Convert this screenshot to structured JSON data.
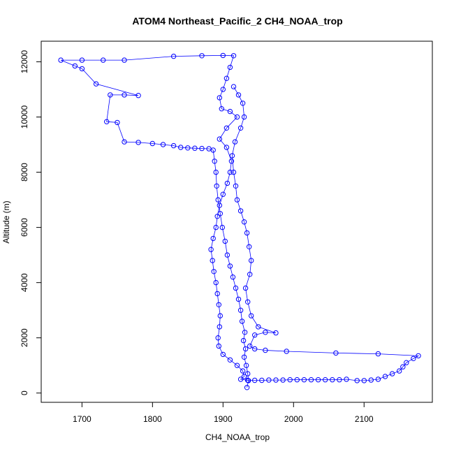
{
  "chart_data": {
    "type": "scatter",
    "title": "ATOM4 Northeast_Pacific_2 CH4_NOAA_trop",
    "xlabel": "CH4_NOAA_trop",
    "ylabel": "Altitude (m)",
    "xlim": [
      1662,
      2177
    ],
    "ylim": [
      170,
      12240
    ],
    "x_ticks": [
      1700,
      1800,
      1900,
      2000,
      2100
    ],
    "y_ticks": [
      0,
      2000,
      4000,
      6000,
      8000,
      10000,
      12000
    ],
    "grid": false,
    "legend": "none",
    "marker": "open-circle",
    "connected_by_line": true,
    "colors": {
      "series": "#0000ff",
      "axes": "#000000",
      "background": "#ffffff"
    },
    "series": [
      {
        "values_xy": [
          [
            1934,
            200
          ],
          [
            1936,
            450
          ],
          [
            1935,
            700
          ],
          [
            1933,
            1000
          ],
          [
            1930,
            1300
          ],
          [
            1932,
            1600
          ],
          [
            1929,
            1900
          ],
          [
            1931,
            2200
          ],
          [
            1927,
            2600
          ],
          [
            1925,
            3000
          ],
          [
            1922,
            3400
          ],
          [
            1918,
            3800
          ],
          [
            1914,
            4200
          ],
          [
            1910,
            4600
          ],
          [
            1906,
            5000
          ],
          [
            1903,
            5500
          ],
          [
            1899,
            6000
          ],
          [
            1896,
            6500
          ],
          [
            1893,
            7000
          ],
          [
            1891,
            7500
          ],
          [
            1890,
            8000
          ],
          [
            1888,
            8400
          ],
          [
            1886,
            8800
          ],
          [
            1880,
            8850
          ],
          [
            1870,
            8860
          ],
          [
            1860,
            8870
          ],
          [
            1850,
            8880
          ],
          [
            1840,
            8900
          ],
          [
            1830,
            8960
          ],
          [
            1815,
            9000
          ],
          [
            1800,
            9040
          ],
          [
            1780,
            9080
          ],
          [
            1760,
            9100
          ],
          [
            1750,
            9800
          ],
          [
            1735,
            9830
          ],
          [
            1740,
            10800
          ],
          [
            1760,
            10800
          ],
          [
            1780,
            10780
          ],
          [
            1720,
            11200
          ],
          [
            1700,
            11750
          ],
          [
            1690,
            11850
          ],
          [
            1670,
            12060
          ],
          [
            1700,
            12060
          ],
          [
            1730,
            12060
          ],
          [
            1760,
            12060
          ],
          [
            1830,
            12200
          ],
          [
            1870,
            12220
          ],
          [
            1900,
            12230
          ],
          [
            1915,
            12220
          ],
          [
            1910,
            11800
          ],
          [
            1905,
            11400
          ],
          [
            1900,
            11000
          ],
          [
            1895,
            10700
          ],
          [
            1898,
            10300
          ],
          [
            1910,
            10200
          ],
          [
            1920,
            10000
          ],
          [
            1905,
            9600
          ],
          [
            1895,
            9200
          ],
          [
            1905,
            8900
          ],
          [
            1912,
            8400
          ],
          [
            1910,
            8000
          ],
          [
            1906,
            7600
          ],
          [
            1900,
            7200
          ],
          [
            1895,
            6800
          ],
          [
            1892,
            6400
          ],
          [
            1890,
            6000
          ],
          [
            1886,
            5600
          ],
          [
            1883,
            5200
          ],
          [
            1885,
            4800
          ],
          [
            1887,
            4400
          ],
          [
            1890,
            4000
          ],
          [
            1892,
            3600
          ],
          [
            1894,
            3200
          ],
          [
            1896,
            2800
          ],
          [
            1895,
            2400
          ],
          [
            1893,
            2000
          ],
          [
            1894,
            1700
          ],
          [
            1900,
            1400
          ],
          [
            1910,
            1200
          ],
          [
            1920,
            1000
          ],
          [
            1928,
            800
          ],
          [
            1930,
            600
          ],
          [
            1925,
            500
          ],
          [
            1935,
            460
          ],
          [
            1945,
            460
          ],
          [
            1955,
            460
          ],
          [
            1965,
            470
          ],
          [
            1975,
            470
          ],
          [
            1985,
            470
          ],
          [
            1995,
            480
          ],
          [
            2005,
            480
          ],
          [
            2015,
            480
          ],
          [
            2025,
            480
          ],
          [
            2035,
            480
          ],
          [
            2045,
            480
          ],
          [
            2055,
            480
          ],
          [
            2065,
            480
          ],
          [
            2075,
            500
          ],
          [
            2090,
            450
          ],
          [
            2100,
            450
          ],
          [
            2110,
            470
          ],
          [
            2120,
            500
          ],
          [
            2130,
            600
          ],
          [
            2140,
            700
          ],
          [
            2150,
            800
          ],
          [
            2155,
            950
          ],
          [
            2160,
            1100
          ],
          [
            2170,
            1250
          ],
          [
            2177,
            1350
          ],
          [
            2120,
            1420
          ],
          [
            2060,
            1450
          ],
          [
            1990,
            1510
          ],
          [
            1960,
            1550
          ],
          [
            1945,
            1600
          ],
          [
            1938,
            1700
          ],
          [
            1945,
            2100
          ],
          [
            1960,
            2200
          ],
          [
            1975,
            2180
          ],
          [
            1950,
            2400
          ],
          [
            1940,
            2800
          ],
          [
            1935,
            3300
          ],
          [
            1932,
            3800
          ],
          [
            1938,
            4300
          ],
          [
            1940,
            4800
          ],
          [
            1937,
            5300
          ],
          [
            1934,
            5800
          ],
          [
            1930,
            6200
          ],
          [
            1925,
            6600
          ],
          [
            1920,
            7000
          ],
          [
            1918,
            7500
          ],
          [
            1915,
            8000
          ],
          [
            1913,
            8600
          ],
          [
            1917,
            9100
          ],
          [
            1925,
            9600
          ],
          [
            1930,
            10000
          ],
          [
            1928,
            10500
          ],
          [
            1922,
            10800
          ],
          [
            1915,
            11100
          ]
        ]
      }
    ]
  }
}
